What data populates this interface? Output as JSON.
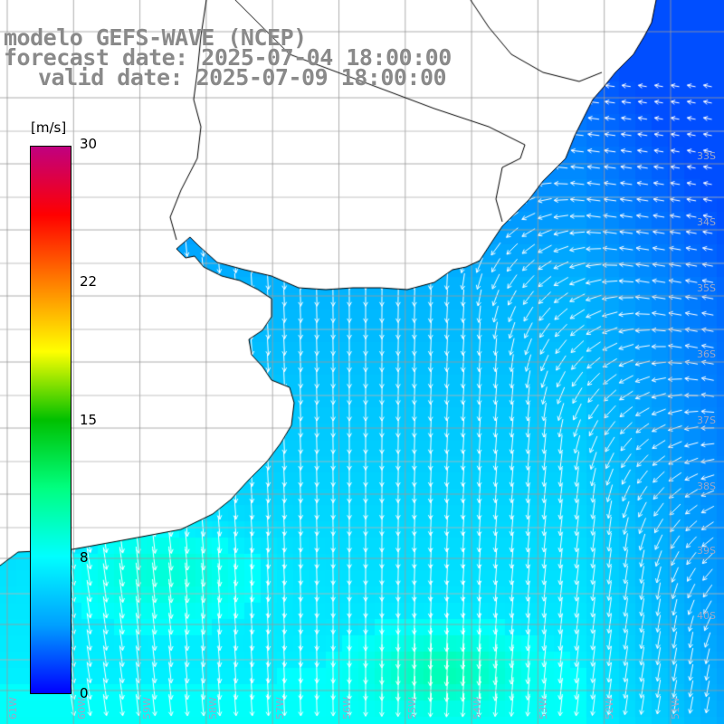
{
  "header": {
    "line1": "modelo GEFS-WAVE (NCEP)",
    "line2": "forecast date: 2025-07-04 18:00:00",
    "line3": "valid date: 2025-07-09 18:00:00"
  },
  "colorbar": {
    "unit": "[m/s]",
    "min": 0,
    "max": 30,
    "ticks": [
      {
        "value": 30,
        "label": "30"
      },
      {
        "value": 22,
        "label": "22"
      },
      {
        "value": 15,
        "label": "15"
      },
      {
        "value": 8,
        "label": "8"
      },
      {
        "value": 0,
        "label": "0"
      }
    ],
    "colors": [
      "#0000ff",
      "#00a0ff",
      "#00ffff",
      "#00ff80",
      "#00c000",
      "#ffff00",
      "#ff8000",
      "#ff0000",
      "#c00080"
    ]
  },
  "map": {
    "background": "#ffffff",
    "grid_color": "#9a9a9a",
    "lat_labels": [
      "33S",
      "34S",
      "35S",
      "36S",
      "37S",
      "38S",
      "39S",
      "40S"
    ],
    "lon_labels": [
      "61W",
      "60W",
      "59W",
      "58W",
      "57W",
      "56W",
      "55W",
      "54W",
      "53W",
      "52W",
      "51W"
    ],
    "field": "wind speed with direction arrows",
    "typical_speed_ms": 7
  }
}
